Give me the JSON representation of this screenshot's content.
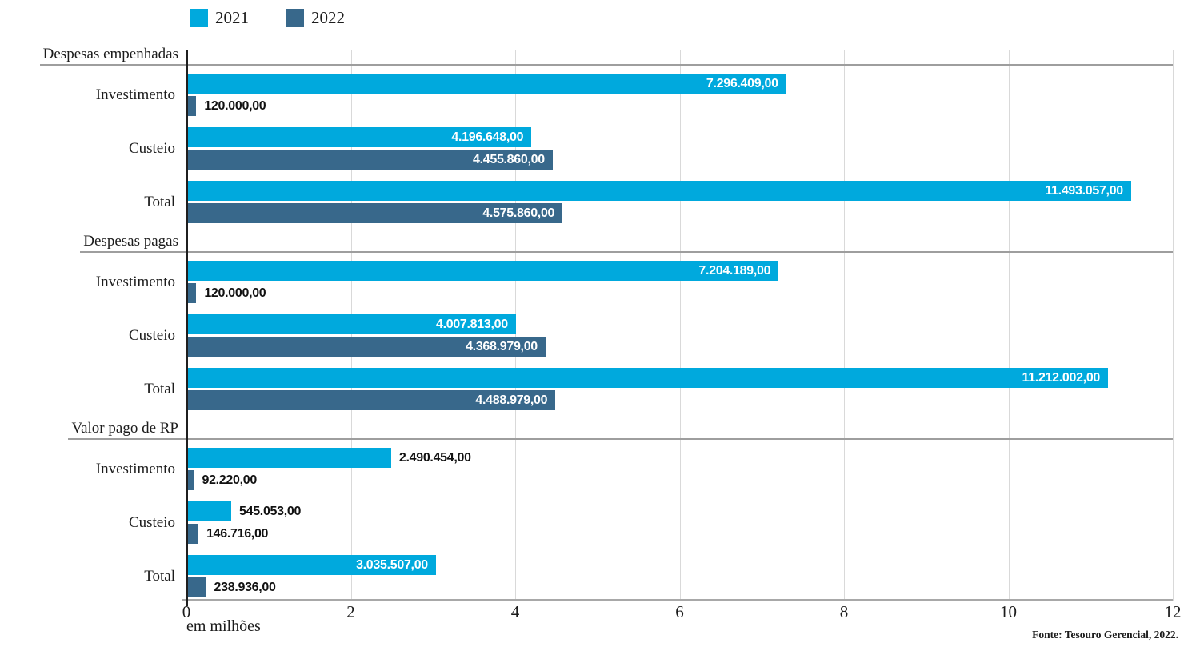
{
  "legend": [
    {
      "label": "2021",
      "color": "#00a9dd"
    },
    {
      "label": "2022",
      "color": "#38688b"
    }
  ],
  "colors": {
    "series_2021": "#00a9dd",
    "series_2022": "#38688b",
    "gridline": "#d9d9d9",
    "section_line": "#9e9e9e",
    "axis_line": "#a8a8a8",
    "value_label_inside": "#ffffff",
    "value_label_outside": "#111111"
  },
  "axis": {
    "unit_label": "em milhões",
    "source": "Fonte: Tesouro Gerencial, 2022."
  },
  "chart_data": {
    "type": "bar",
    "orientation": "horizontal",
    "title": "",
    "xlabel": "em milhões",
    "ylabel": "",
    "xlim": [
      0,
      12
    ],
    "x_ticks": [
      0,
      2,
      4,
      6,
      8,
      10,
      12
    ],
    "grid": true,
    "legend_position": "top-left",
    "series_names": [
      "2021",
      "2022"
    ],
    "value_unit": "reais",
    "sections": [
      {
        "title": "Despesas empenhadas",
        "rows": [
          {
            "category": "Investimento",
            "values": [
              7296409.0,
              120000.0
            ],
            "labels": [
              "7.296.409,00",
              "120.000,00"
            ]
          },
          {
            "category": "Custeio",
            "values": [
              4196648.0,
              4455860.0
            ],
            "labels": [
              "4.196.648,00",
              "4.455.860,00"
            ]
          },
          {
            "category": "Total",
            "values": [
              11493057.0,
              4575860.0
            ],
            "labels": [
              "11.493.057,00",
              "4.575.860,00"
            ]
          }
        ]
      },
      {
        "title": "Despesas pagas",
        "rows": [
          {
            "category": "Investimento",
            "values": [
              7204189.0,
              120000.0
            ],
            "labels": [
              "7.204.189,00",
              "120.000,00"
            ]
          },
          {
            "category": "Custeio",
            "values": [
              4007813.0,
              4368979.0
            ],
            "labels": [
              "4.007.813,00",
              "4.368.979,00"
            ]
          },
          {
            "category": "Total",
            "values": [
              11212002.0,
              4488979.0
            ],
            "labels": [
              "11.212.002,00",
              "4.488.979,00"
            ]
          }
        ]
      },
      {
        "title": "Valor pago de RP",
        "rows": [
          {
            "category": "Investimento",
            "values": [
              2490454.0,
              92220.0
            ],
            "labels": [
              "2.490.454,00",
              "92.220,00"
            ]
          },
          {
            "category": "Custeio",
            "values": [
              545053.0,
              146716.0
            ],
            "labels": [
              "545.053,00",
              "146.716,00"
            ]
          },
          {
            "category": "Total",
            "values": [
              3035507.0,
              238936.0
            ],
            "labels": [
              "3.035.507,00",
              "238.936,00"
            ]
          }
        ]
      }
    ],
    "value_label_inside_threshold": 2750000
  }
}
